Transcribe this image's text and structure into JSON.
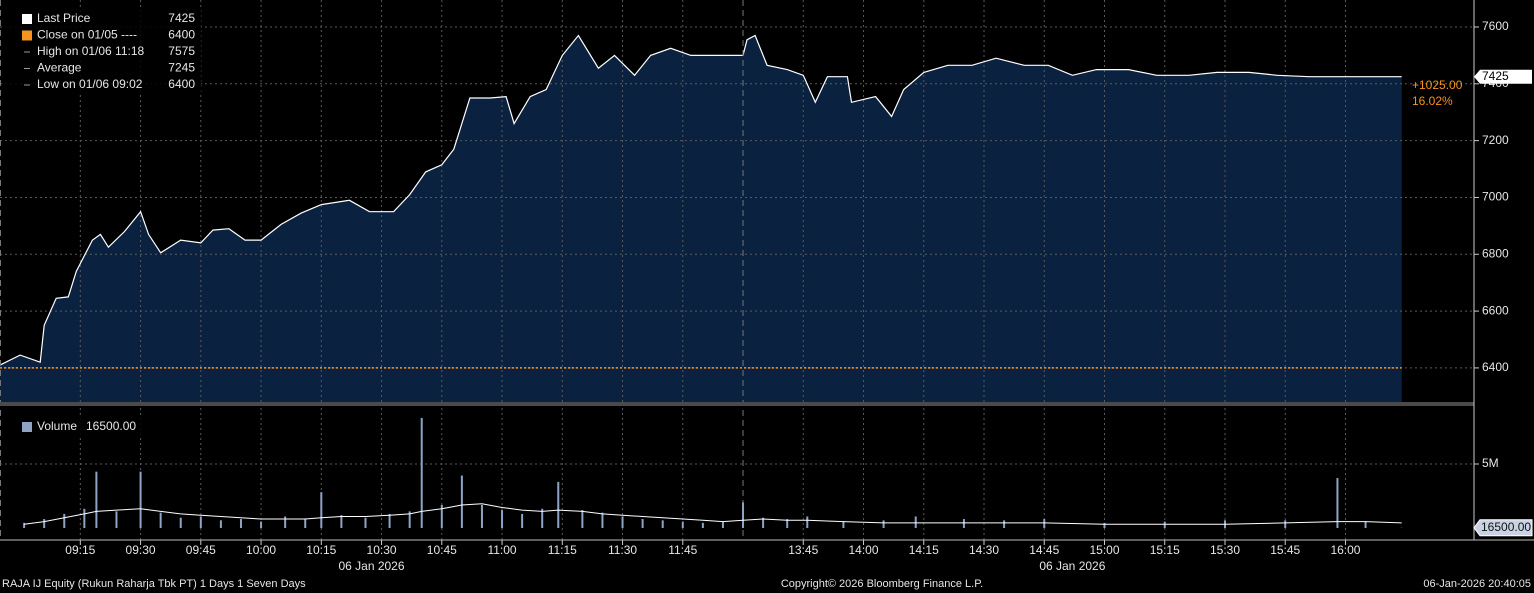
{
  "chart_data": [
    {
      "type": "area",
      "x": [
        "08:55",
        "09:00",
        "09:05",
        "09:06",
        "09:09",
        "09:12",
        "09:14",
        "09:18",
        "09:20",
        "09:22",
        "09:26",
        "09:30",
        "09:32",
        "09:35",
        "09:40",
        "09:45",
        "09:48",
        "09:52",
        "09:56",
        "10:00",
        "10:05",
        "10:10",
        "10:15",
        "10:22",
        "10:27",
        "10:33",
        "10:37",
        "10:41",
        "10:45",
        "10:48",
        "10:52",
        "10:57",
        "11:01",
        "11:03",
        "11:07",
        "11:11",
        "11:15",
        "11:19",
        "11:24",
        "11:28",
        "11:33",
        "11:37",
        "11:42",
        "11:47",
        "11:52",
        "11:57",
        "12:00",
        "13:30",
        "13:31",
        "13:33",
        "13:36",
        "13:41",
        "13:45",
        "13:48",
        "13:51",
        "13:56",
        "13:57",
        "14:03",
        "14:07",
        "14:10",
        "14:15",
        "14:21",
        "14:27",
        "14:33",
        "14:40",
        "14:46",
        "14:52",
        "14:58",
        "15:06",
        "15:13",
        "15:21",
        "15:28",
        "15:36",
        "15:43",
        "15:51",
        "15:58",
        "16:06",
        "16:14"
      ],
      "series": [
        {
          "color": "#ffffff",
          "fill": "#0a2240",
          "values": [
            6410,
            6445,
            6420,
            6550,
            6645,
            6650,
            6740,
            6850,
            6870,
            6825,
            6880,
            6950,
            6870,
            6805,
            6850,
            6840,
            6885,
            6890,
            6850,
            6850,
            6905,
            6945,
            6975,
            6990,
            6950,
            6950,
            7010,
            7090,
            7115,
            7170,
            7350,
            7350,
            7355,
            7260,
            7355,
            7380,
            7500,
            7570,
            7455,
            7500,
            7430,
            7500,
            7525,
            7500,
            7500,
            7500,
            7500,
            7500,
            7555,
            7570,
            7465,
            7450,
            7430,
            7335,
            7425,
            7425,
            7335,
            7355,
            7285,
            7380,
            7440,
            7465,
            7465,
            7490,
            7465,
            7465,
            7430,
            7450,
            7450,
            7430,
            7430,
            7440,
            7440,
            7430,
            7425,
            7425,
            7425,
            7425
          ]
        }
      ],
      "xlim": [
        "08:55",
        "16:32"
      ],
      "ylim": [
        6280,
        7695
      ],
      "yticks": [
        6400,
        6600,
        6800,
        7000,
        7200,
        7400,
        7600
      ],
      "grid": true,
      "legend": {
        "position": "top-left",
        "items": [
          {
            "label": "Last Price",
            "value": 7425,
            "color": "#ffffff"
          },
          {
            "label": "Close on 01/05 ----",
            "value": 6400,
            "color": "#f7941d"
          },
          {
            "label": "High on 01/06 11:18",
            "value": 7575
          },
          {
            "label": "Average",
            "value": 7245
          },
          {
            "label": "Low on 01/06 09:02",
            "value": 6400
          }
        ]
      },
      "annotations": [
        {
          "value": 1025,
          "label": "+1025.00"
        },
        {
          "value": 16.02,
          "label": "16.02%"
        }
      ],
      "annotation_color": "#f7941d"
    },
    {
      "type": "bar",
      "x": [
        "09:01",
        "09:06",
        "09:11",
        "09:16",
        "09:19",
        "09:24",
        "09:30",
        "09:35",
        "09:40",
        "09:45",
        "09:50",
        "09:55",
        "10:00",
        "10:06",
        "10:11",
        "10:15",
        "10:20",
        "10:26",
        "10:32",
        "10:37",
        "10:40",
        "10:45",
        "10:50",
        "10:55",
        "11:00",
        "11:05",
        "11:10",
        "11:14",
        "11:20",
        "11:25",
        "11:30",
        "11:35",
        "11:40",
        "11:45",
        "11:50",
        "11:55",
        "13:30",
        "13:35",
        "13:41",
        "13:46",
        "13:55",
        "14:05",
        "14:13",
        "14:25",
        "14:35",
        "14:45",
        "15:00",
        "15:15",
        "15:30",
        "15:45",
        "15:58",
        "16:05",
        "16:14"
      ],
      "series": [
        {
          "name": "Volume",
          "color": "#8fa3c7",
          "values": [
            400000,
            700000,
            1100000,
            1500000,
            4400000,
            1300000,
            4400000,
            1200000,
            800000,
            900000,
            600000,
            700000,
            500000,
            900000,
            700000,
            2800000,
            1000000,
            800000,
            1100000,
            1300000,
            8600000,
            1800000,
            4100000,
            1800000,
            1400000,
            1100000,
            1500000,
            3600000,
            1400000,
            1200000,
            900000,
            700000,
            600000,
            500000,
            400000,
            500000,
            2000000,
            800000,
            700000,
            900000,
            500000,
            600000,
            900000,
            700000,
            600000,
            700000,
            400000,
            500000,
            600000,
            600000,
            3900000,
            500000,
            16500
          ]
        },
        {
          "color": "#ffffff",
          "values": [
            300000,
            500000,
            800000,
            1100000,
            1300000,
            1400000,
            1500000,
            1300000,
            1100000,
            1000000,
            900000,
            800000,
            700000,
            700000,
            700000,
            800000,
            900000,
            900000,
            1000000,
            1100000,
            1300000,
            1500000,
            1800000,
            1900000,
            1600000,
            1400000,
            1300000,
            1400000,
            1300000,
            1100000,
            1000000,
            900000,
            800000,
            700000,
            600000,
            500000,
            600000,
            700000,
            600000,
            600000,
            500000,
            400000,
            400000,
            400000,
            400000,
            400000,
            300000,
            300000,
            300000,
            400000,
            500000,
            500000,
            400000
          ]
        }
      ],
      "legend_value": {
        "value": 16500,
        "label": "16500.00"
      },
      "xlim": [
        "08:55",
        "16:32"
      ],
      "ylim": [
        0,
        9375000
      ],
      "yticks": [
        {
          "value": 5000000,
          "label": "5M"
        }
      ],
      "xticks": [
        "09:15",
        "09:30",
        "09:45",
        "10:00",
        "10:15",
        "10:30",
        "10:45",
        "11:00",
        "11:15",
        "11:30",
        "11:45",
        "13:45",
        "14:00",
        "14:15",
        "14:30",
        "14:45",
        "15:00",
        "15:15",
        "15:30",
        "15:45",
        "16:00"
      ],
      "dates": [
        "06 Jan 2026",
        "06 Jan 2026"
      ]
    }
  ],
  "footer": {
    "left": "RAJA IJ Equity (Rukun Raharja Tbk PT) 1 Days 1 Seven Days",
    "center": "Copyright© 2026 Bloomberg Finance L.P.",
    "right": "06-Jan-2026 20:40:05"
  }
}
